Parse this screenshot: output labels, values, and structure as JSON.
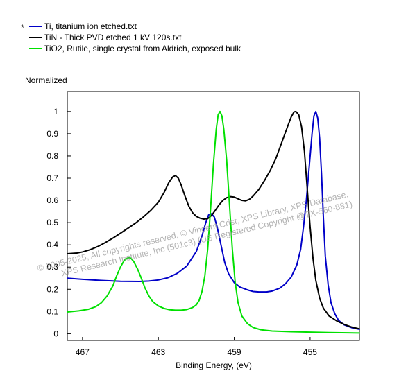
{
  "legend": {
    "marker": "*",
    "entries": [
      {
        "label": "Ti, titanium ion etched.txt",
        "color": "#0000c8"
      },
      {
        "label": "TiN - Thick PVD etched 1 kV 120s.txt",
        "color": "#000000"
      },
      {
        "label": "TiO2, Rutile, single crystal from Aldrich, exposed bulk",
        "color": "#00e000"
      }
    ]
  },
  "watermark": {
    "line1": "©  2005-2025,  All copyrights reserved,   ©  Vincent Crist,   XPS Library, XPS Database,",
    "line2": "XPS Research Institute, Inc (501c3)  (US Registered Copyright @TX-560-881)"
  },
  "chart_data": {
    "type": "line",
    "xlabel": "Binding Energy, (eV)",
    "ylabel": "Normalized",
    "xlim": [
      467.8,
      452.4
    ],
    "ylim": [
      -0.03,
      1.09
    ],
    "xticks": [
      {
        "value": 467,
        "label": "467"
      },
      {
        "value": 463,
        "label": "463"
      },
      {
        "value": 459,
        "label": "459"
      },
      {
        "value": 455,
        "label": "455"
      }
    ],
    "yticks": [
      {
        "value": 0,
        "label": "0"
      },
      {
        "value": 0.1,
        "label": "0.1"
      },
      {
        "value": 0.2,
        "label": "0.2"
      },
      {
        "value": 0.3,
        "label": "0.3"
      },
      {
        "value": 0.4,
        "label": "0.4"
      },
      {
        "value": 0.5,
        "label": "0.5"
      },
      {
        "value": 0.6,
        "label": "0.6"
      },
      {
        "value": 0.7,
        "label": "0.7"
      },
      {
        "value": 0.8,
        "label": "0.8"
      },
      {
        "value": 0.9,
        "label": "0.9"
      },
      {
        "value": 1,
        "label": "1"
      }
    ],
    "series": [
      {
        "name": "Ti, titanium ion etched.txt",
        "color": "#0000c8",
        "points": [
          [
            467.8,
            0.25
          ],
          [
            467.0,
            0.245
          ],
          [
            466.0,
            0.24
          ],
          [
            465.0,
            0.236
          ],
          [
            464.0,
            0.235
          ],
          [
            463.5,
            0.237
          ],
          [
            463.0,
            0.242
          ],
          [
            462.5,
            0.252
          ],
          [
            462.0,
            0.272
          ],
          [
            461.5,
            0.305
          ],
          [
            461.0,
            0.37
          ],
          [
            460.7,
            0.44
          ],
          [
            460.5,
            0.5
          ],
          [
            460.35,
            0.535
          ],
          [
            460.2,
            0.54
          ],
          [
            460.05,
            0.525
          ],
          [
            459.9,
            0.48
          ],
          [
            459.7,
            0.4
          ],
          [
            459.5,
            0.32
          ],
          [
            459.3,
            0.27
          ],
          [
            459.0,
            0.23
          ],
          [
            458.7,
            0.21
          ],
          [
            458.3,
            0.197
          ],
          [
            458.0,
            0.19
          ],
          [
            457.7,
            0.188
          ],
          [
            457.3,
            0.188
          ],
          [
            457.0,
            0.192
          ],
          [
            456.6,
            0.205
          ],
          [
            456.3,
            0.225
          ],
          [
            456.0,
            0.255
          ],
          [
            455.7,
            0.31
          ],
          [
            455.5,
            0.38
          ],
          [
            455.35,
            0.48
          ],
          [
            455.2,
            0.6
          ],
          [
            455.05,
            0.75
          ],
          [
            454.9,
            0.9
          ],
          [
            454.8,
            0.98
          ],
          [
            454.7,
            1.0
          ],
          [
            454.6,
            0.97
          ],
          [
            454.5,
            0.88
          ],
          [
            454.4,
            0.72
          ],
          [
            454.3,
            0.52
          ],
          [
            454.2,
            0.35
          ],
          [
            454.05,
            0.22
          ],
          [
            453.9,
            0.14
          ],
          [
            453.7,
            0.09
          ],
          [
            453.5,
            0.06
          ],
          [
            453.2,
            0.04
          ],
          [
            452.8,
            0.027
          ],
          [
            452.4,
            0.02
          ]
        ]
      },
      {
        "name": "TiN - Thick PVD etched 1 kV 120s.txt",
        "color": "#000000",
        "points": [
          [
            467.8,
            0.36
          ],
          [
            467.3,
            0.363
          ],
          [
            467.0,
            0.368
          ],
          [
            466.6,
            0.378
          ],
          [
            466.2,
            0.392
          ],
          [
            465.8,
            0.41
          ],
          [
            465.4,
            0.43
          ],
          [
            465.0,
            0.452
          ],
          [
            464.6,
            0.475
          ],
          [
            464.2,
            0.498
          ],
          [
            463.8,
            0.525
          ],
          [
            463.4,
            0.555
          ],
          [
            463.0,
            0.592
          ],
          [
            462.7,
            0.635
          ],
          [
            462.45,
            0.68
          ],
          [
            462.25,
            0.705
          ],
          [
            462.1,
            0.712
          ],
          [
            461.95,
            0.7
          ],
          [
            461.8,
            0.67
          ],
          [
            461.6,
            0.62
          ],
          [
            461.4,
            0.575
          ],
          [
            461.2,
            0.545
          ],
          [
            461.0,
            0.528
          ],
          [
            460.8,
            0.52
          ],
          [
            460.6,
            0.516
          ],
          [
            460.4,
            0.518
          ],
          [
            460.2,
            0.532
          ],
          [
            460.0,
            0.555
          ],
          [
            459.8,
            0.58
          ],
          [
            459.6,
            0.6
          ],
          [
            459.4,
            0.612
          ],
          [
            459.2,
            0.617
          ],
          [
            459.0,
            0.615
          ],
          [
            458.8,
            0.607
          ],
          [
            458.6,
            0.6
          ],
          [
            458.4,
            0.598
          ],
          [
            458.2,
            0.605
          ],
          [
            458.0,
            0.62
          ],
          [
            457.7,
            0.65
          ],
          [
            457.4,
            0.69
          ],
          [
            457.1,
            0.735
          ],
          [
            456.8,
            0.79
          ],
          [
            456.5,
            0.86
          ],
          [
            456.2,
            0.93
          ],
          [
            456.0,
            0.975
          ],
          [
            455.85,
            0.998
          ],
          [
            455.75,
            1.0
          ],
          [
            455.6,
            0.985
          ],
          [
            455.45,
            0.93
          ],
          [
            455.3,
            0.82
          ],
          [
            455.15,
            0.65
          ],
          [
            455.0,
            0.48
          ],
          [
            454.85,
            0.34
          ],
          [
            454.7,
            0.24
          ],
          [
            454.5,
            0.16
          ],
          [
            454.3,
            0.115
          ],
          [
            454.0,
            0.08
          ],
          [
            453.6,
            0.058
          ],
          [
            453.2,
            0.042
          ],
          [
            452.8,
            0.03
          ],
          [
            452.4,
            0.022
          ]
        ]
      },
      {
        "name": "TiO2, Rutile, single crystal from Aldrich, exposed bulk",
        "color": "#00e000",
        "points": [
          [
            467.8,
            0.098
          ],
          [
            467.2,
            0.103
          ],
          [
            466.7,
            0.11
          ],
          [
            466.3,
            0.122
          ],
          [
            466.0,
            0.14
          ],
          [
            465.7,
            0.17
          ],
          [
            465.4,
            0.215
          ],
          [
            465.2,
            0.26
          ],
          [
            465.0,
            0.3
          ],
          [
            464.8,
            0.33
          ],
          [
            464.6,
            0.342
          ],
          [
            464.45,
            0.34
          ],
          [
            464.3,
            0.325
          ],
          [
            464.1,
            0.292
          ],
          [
            463.9,
            0.25
          ],
          [
            463.7,
            0.205
          ],
          [
            463.5,
            0.17
          ],
          [
            463.3,
            0.145
          ],
          [
            463.0,
            0.125
          ],
          [
            462.7,
            0.114
          ],
          [
            462.4,
            0.108
          ],
          [
            462.1,
            0.106
          ],
          [
            461.8,
            0.106
          ],
          [
            461.5,
            0.109
          ],
          [
            461.2,
            0.118
          ],
          [
            461.0,
            0.13
          ],
          [
            460.85,
            0.15
          ],
          [
            460.7,
            0.19
          ],
          [
            460.55,
            0.26
          ],
          [
            460.4,
            0.38
          ],
          [
            460.25,
            0.56
          ],
          [
            460.1,
            0.76
          ],
          [
            459.95,
            0.92
          ],
          [
            459.85,
            0.985
          ],
          [
            459.75,
            1.0
          ],
          [
            459.65,
            0.98
          ],
          [
            459.55,
            0.92
          ],
          [
            459.4,
            0.78
          ],
          [
            459.25,
            0.58
          ],
          [
            459.1,
            0.38
          ],
          [
            458.95,
            0.23
          ],
          [
            458.8,
            0.14
          ],
          [
            458.6,
            0.08
          ],
          [
            458.3,
            0.045
          ],
          [
            458.0,
            0.028
          ],
          [
            457.6,
            0.018
          ],
          [
            457.0,
            0.012
          ],
          [
            456.0,
            0.009
          ],
          [
            455.0,
            0.007
          ],
          [
            454.0,
            0.005
          ],
          [
            453.0,
            0.004
          ],
          [
            452.4,
            0.003
          ]
        ]
      }
    ]
  }
}
